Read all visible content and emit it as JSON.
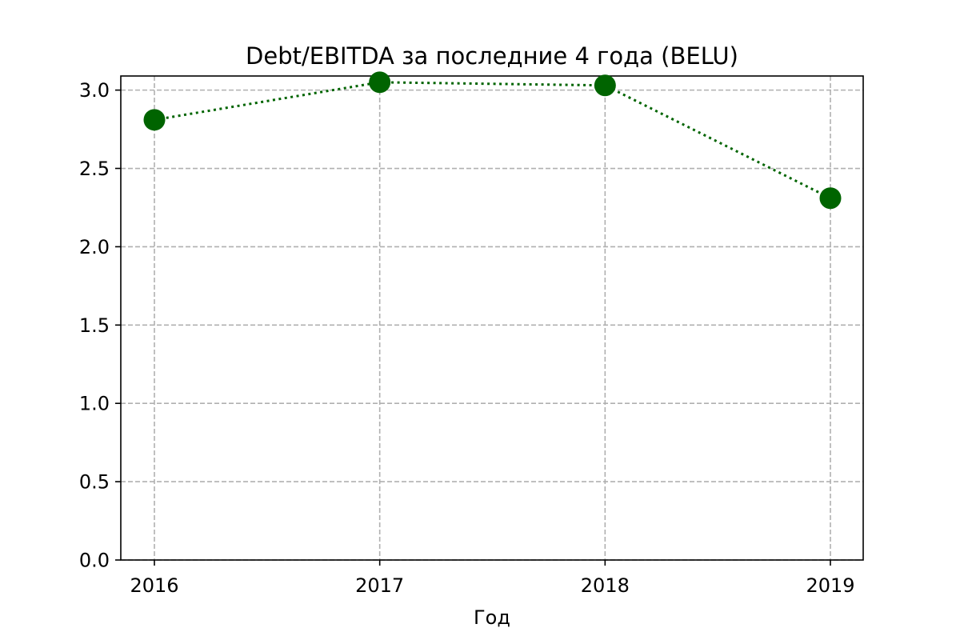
{
  "chart_data": {
    "type": "line",
    "title": "Debt/EBITDA за последние 4 года (BELU)",
    "xlabel": "Год",
    "ylabel": "",
    "x": [
      "2016",
      "2017",
      "2018",
      "2019"
    ],
    "series": [
      {
        "values": [
          2.81,
          3.05,
          3.03,
          2.31
        ]
      }
    ],
    "ylim": [
      0,
      3.09
    ],
    "y_ticks": [
      "0.0",
      "0.5",
      "1.0",
      "1.5",
      "2.0",
      "2.5",
      "3.0"
    ],
    "grid": true,
    "line_style": "dotted",
    "marker": "circle",
    "colors": {
      "series": "#006400",
      "grid": "#b0b0b0",
      "axes": "#000000"
    }
  }
}
